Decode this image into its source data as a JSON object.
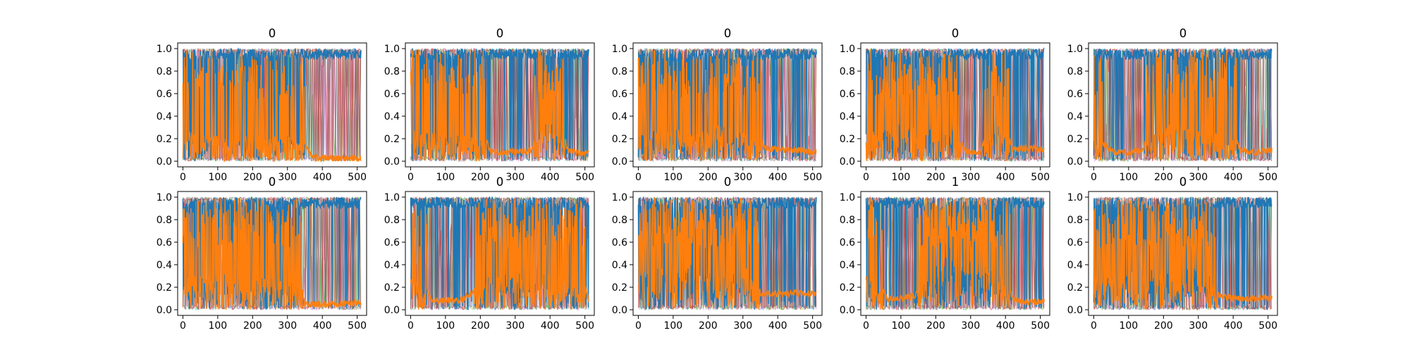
{
  "figure": {
    "colors": {
      "background": "#ffffff",
      "axes": "#000000",
      "primary_series": "#1f77b4",
      "secondary_series": "#ff7f0e",
      "accent_series": [
        "#17becf",
        "#bcbd22",
        "#2ca02c",
        "#9467bd",
        "#e377c2",
        "#8c564b",
        "#7f7f7f",
        "#d62728"
      ]
    }
  },
  "chart_data": [
    {
      "type": "line",
      "title": "0",
      "xlim": [
        -15,
        527
      ],
      "ylim": [
        -0.05,
        1.05
      ],
      "xticks": [
        0,
        100,
        200,
        300,
        400,
        500
      ],
      "yticks": [
        "0.0",
        "0.2",
        "0.4",
        "0.6",
        "0.8",
        "1.0"
      ],
      "grid": false,
      "series": [
        {
          "color": "#1f77b4",
          "x": [
            0,
            50,
            100,
            150,
            200,
            250,
            300,
            330,
            360,
            370,
            400,
            450,
            500,
            511
          ],
          "y": [
            0.6,
            0.7,
            0.65,
            0.7,
            0.6,
            0.7,
            0.6,
            0.7,
            0.9,
            1.0,
            1.0,
            1.0,
            1.0,
            1.0
          ]
        },
        {
          "color": "#ff7f0e",
          "x": [
            0,
            50,
            100,
            150,
            200,
            250,
            300,
            330,
            360,
            370,
            400,
            450,
            500,
            511
          ],
          "y": [
            0.4,
            0.35,
            0.35,
            0.3,
            0.4,
            0.3,
            0.35,
            0.3,
            0.1,
            0.03,
            0.03,
            0.02,
            0.03,
            0.03
          ]
        }
      ]
    },
    {
      "type": "line",
      "title": "0",
      "xlim": [
        -15,
        527
      ],
      "ylim": [
        -0.05,
        1.05
      ],
      "xticks": [
        0,
        100,
        200,
        300,
        400,
        500
      ],
      "yticks": [
        "0.0",
        "0.2",
        "0.4",
        "0.6",
        "0.8",
        "1.0"
      ],
      "grid": false,
      "series": [
        {
          "color": "#1f77b4",
          "x": [
            0,
            50,
            100,
            150,
            200,
            230,
            300,
            350,
            380,
            410,
            450,
            500,
            511
          ],
          "y": [
            0.6,
            0.6,
            0.7,
            0.65,
            0.7,
            0.9,
            0.9,
            0.9,
            0.5,
            0.4,
            0.9,
            0.92,
            0.92
          ]
        },
        {
          "color": "#ff7f0e",
          "x": [
            0,
            50,
            100,
            150,
            200,
            230,
            300,
            350,
            380,
            410,
            450,
            500,
            511
          ],
          "y": [
            0.4,
            0.4,
            0.3,
            0.35,
            0.3,
            0.08,
            0.08,
            0.1,
            0.5,
            0.6,
            0.1,
            0.06,
            0.08
          ]
        }
      ]
    },
    {
      "type": "line",
      "title": "0",
      "xlim": [
        -15,
        527
      ],
      "ylim": [
        -0.05,
        1.05
      ],
      "xticks": [
        0,
        100,
        200,
        300,
        400,
        500
      ],
      "yticks": [
        "0.0",
        "0.2",
        "0.4",
        "0.6",
        "0.8",
        "1.0"
      ],
      "grid": false,
      "series": [
        {
          "color": "#1f77b4",
          "x": [
            0,
            50,
            100,
            150,
            200,
            250,
            300,
            340,
            360,
            400,
            450,
            500,
            511
          ],
          "y": [
            0.6,
            0.6,
            0.55,
            0.6,
            0.6,
            0.5,
            0.6,
            0.7,
            0.88,
            0.9,
            0.9,
            0.92,
            0.92
          ]
        },
        {
          "color": "#ff7f0e",
          "x": [
            0,
            50,
            100,
            150,
            200,
            250,
            300,
            340,
            360,
            400,
            450,
            500,
            511
          ],
          "y": [
            0.4,
            0.4,
            0.45,
            0.4,
            0.4,
            0.5,
            0.4,
            0.3,
            0.12,
            0.1,
            0.1,
            0.08,
            0.08
          ]
        }
      ]
    },
    {
      "type": "line",
      "title": "0",
      "xlim": [
        -15,
        527
      ],
      "ylim": [
        -0.05,
        1.05
      ],
      "xticks": [
        0,
        100,
        200,
        300,
        400,
        500
      ],
      "yticks": [
        "0.0",
        "0.2",
        "0.4",
        "0.6",
        "0.8",
        "1.0"
      ],
      "grid": false,
      "series": [
        {
          "color": "#1f77b4",
          "x": [
            0,
            50,
            100,
            150,
            200,
            250,
            280,
            300,
            330,
            360,
            380,
            420,
            460,
            511
          ],
          "y": [
            0.6,
            0.6,
            0.5,
            0.6,
            0.5,
            0.5,
            0.9,
            0.92,
            0.92,
            0.6,
            0.5,
            0.9,
            0.88,
            0.9
          ]
        },
        {
          "color": "#ff7f0e",
          "x": [
            0,
            50,
            100,
            150,
            200,
            250,
            280,
            300,
            330,
            360,
            380,
            420,
            460,
            511
          ],
          "y": [
            0.4,
            0.4,
            0.5,
            0.4,
            0.5,
            0.5,
            0.1,
            0.08,
            0.08,
            0.4,
            0.5,
            0.1,
            0.12,
            0.1
          ]
        }
      ]
    },
    {
      "type": "line",
      "title": "0",
      "xlim": [
        -15,
        527
      ],
      "ylim": [
        -0.05,
        1.05
      ],
      "xticks": [
        0,
        100,
        200,
        300,
        400,
        500
      ],
      "yticks": [
        "0.0",
        "0.2",
        "0.4",
        "0.6",
        "0.8",
        "1.0"
      ],
      "grid": false,
      "series": [
        {
          "color": "#1f77b4",
          "x": [
            0,
            30,
            60,
            100,
            140,
            180,
            220,
            260,
            300,
            340,
            380,
            420,
            460,
            511
          ],
          "y": [
            0.7,
            0.85,
            0.92,
            0.92,
            0.9,
            0.6,
            0.5,
            0.55,
            0.6,
            0.65,
            0.6,
            0.9,
            0.92,
            0.9
          ]
        },
        {
          "color": "#ff7f0e",
          "x": [
            0,
            30,
            60,
            100,
            140,
            180,
            220,
            260,
            300,
            340,
            380,
            420,
            460,
            511
          ],
          "y": [
            0.3,
            0.15,
            0.08,
            0.08,
            0.1,
            0.4,
            0.5,
            0.45,
            0.4,
            0.35,
            0.4,
            0.1,
            0.08,
            0.1
          ]
        }
      ]
    },
    {
      "type": "line",
      "title": "0",
      "xlim": [
        -15,
        527
      ],
      "ylim": [
        -0.05,
        1.05
      ],
      "xticks": [
        0,
        100,
        200,
        300,
        400,
        500
      ],
      "yticks": [
        "0.0",
        "0.2",
        "0.4",
        "0.6",
        "0.8",
        "1.0"
      ],
      "grid": false,
      "series": [
        {
          "color": "#1f77b4",
          "x": [
            0,
            50,
            100,
            150,
            200,
            250,
            300,
            335,
            350,
            400,
            450,
            500,
            511
          ],
          "y": [
            0.6,
            0.55,
            0.5,
            0.6,
            0.55,
            0.6,
            0.6,
            0.7,
            0.95,
            0.95,
            0.95,
            0.94,
            0.94
          ]
        },
        {
          "color": "#ff7f0e",
          "x": [
            0,
            50,
            100,
            150,
            200,
            250,
            300,
            335,
            350,
            400,
            450,
            500,
            511
          ],
          "y": [
            0.4,
            0.45,
            0.5,
            0.4,
            0.45,
            0.4,
            0.4,
            0.3,
            0.05,
            0.05,
            0.05,
            0.06,
            0.06
          ]
        }
      ]
    },
    {
      "type": "line",
      "title": "0",
      "xlim": [
        -15,
        527
      ],
      "ylim": [
        -0.05,
        1.05
      ],
      "xticks": [
        0,
        100,
        200,
        300,
        400,
        500
      ],
      "yticks": [
        "0.0",
        "0.2",
        "0.4",
        "0.6",
        "0.8",
        "1.0"
      ],
      "grid": false,
      "series": [
        {
          "color": "#1f77b4",
          "x": [
            0,
            30,
            60,
            100,
            140,
            180,
            220,
            260,
            300,
            340,
            380,
            420,
            460,
            500,
            511
          ],
          "y": [
            0.6,
            0.7,
            0.92,
            0.92,
            0.92,
            0.85,
            0.5,
            0.55,
            0.5,
            0.6,
            0.5,
            0.55,
            0.6,
            0.8,
            0.92
          ]
        },
        {
          "color": "#ff7f0e",
          "x": [
            0,
            30,
            60,
            100,
            140,
            180,
            220,
            260,
            300,
            340,
            380,
            420,
            460,
            500,
            511
          ],
          "y": [
            0.4,
            0.3,
            0.08,
            0.08,
            0.08,
            0.15,
            0.5,
            0.45,
            0.5,
            0.4,
            0.5,
            0.45,
            0.4,
            0.2,
            0.08
          ]
        }
      ]
    },
    {
      "type": "line",
      "title": "0",
      "xlim": [
        -15,
        527
      ],
      "ylim": [
        -0.05,
        1.05
      ],
      "xticks": [
        0,
        100,
        200,
        300,
        400,
        500
      ],
      "yticks": [
        "0.0",
        "0.2",
        "0.4",
        "0.6",
        "0.8",
        "1.0"
      ],
      "grid": false,
      "series": [
        {
          "color": "#1f77b4",
          "x": [
            0,
            50,
            100,
            150,
            200,
            250,
            300,
            330,
            350,
            400,
            450,
            500,
            511
          ],
          "y": [
            0.5,
            0.45,
            0.5,
            0.4,
            0.45,
            0.5,
            0.4,
            0.6,
            0.85,
            0.86,
            0.85,
            0.86,
            0.86
          ]
        },
        {
          "color": "#ff7f0e",
          "x": [
            0,
            50,
            100,
            150,
            200,
            250,
            300,
            330,
            350,
            400,
            450,
            500,
            511
          ],
          "y": [
            0.5,
            0.55,
            0.5,
            0.6,
            0.55,
            0.5,
            0.6,
            0.4,
            0.15,
            0.14,
            0.15,
            0.14,
            0.14
          ]
        }
      ]
    },
    {
      "type": "line",
      "title": "1",
      "xlim": [
        -15,
        527
      ],
      "ylim": [
        -0.05,
        1.05
      ],
      "xticks": [
        0,
        100,
        200,
        300,
        400,
        500
      ],
      "yticks": [
        "0.0",
        "0.2",
        "0.4",
        "0.6",
        "0.8",
        "1.0"
      ],
      "grid": false,
      "series": [
        {
          "color": "#1f77b4",
          "x": [
            0,
            30,
            60,
            100,
            140,
            170,
            200,
            250,
            300,
            350,
            390,
            420,
            460,
            511
          ],
          "y": [
            0.5,
            0.7,
            0.9,
            0.9,
            0.88,
            0.6,
            0.3,
            0.35,
            0.3,
            0.4,
            0.5,
            0.9,
            0.93,
            0.93
          ]
        },
        {
          "color": "#ff7f0e",
          "x": [
            0,
            30,
            60,
            100,
            140,
            170,
            200,
            250,
            300,
            350,
            390,
            420,
            460,
            511
          ],
          "y": [
            0.5,
            0.3,
            0.1,
            0.1,
            0.12,
            0.4,
            0.7,
            0.65,
            0.7,
            0.6,
            0.5,
            0.1,
            0.07,
            0.07
          ]
        }
      ]
    },
    {
      "type": "line",
      "title": "0",
      "xlim": [
        -15,
        527
      ],
      "ylim": [
        -0.05,
        1.05
      ],
      "xticks": [
        0,
        100,
        200,
        300,
        400,
        500
      ],
      "yticks": [
        "0.0",
        "0.2",
        "0.4",
        "0.6",
        "0.8",
        "1.0"
      ],
      "grid": false,
      "series": [
        {
          "color": "#1f77b4",
          "x": [
            0,
            50,
            100,
            150,
            200,
            250,
            300,
            340,
            360,
            400,
            450,
            500,
            511
          ],
          "y": [
            0.6,
            0.5,
            0.4,
            0.5,
            0.45,
            0.5,
            0.4,
            0.6,
            0.88,
            0.9,
            0.9,
            0.9,
            0.9
          ]
        },
        {
          "color": "#ff7f0e",
          "x": [
            0,
            50,
            100,
            150,
            200,
            250,
            300,
            340,
            360,
            400,
            450,
            500,
            511
          ],
          "y": [
            0.4,
            0.5,
            0.6,
            0.5,
            0.55,
            0.5,
            0.6,
            0.4,
            0.12,
            0.1,
            0.1,
            0.1,
            0.1
          ]
        }
      ]
    }
  ]
}
